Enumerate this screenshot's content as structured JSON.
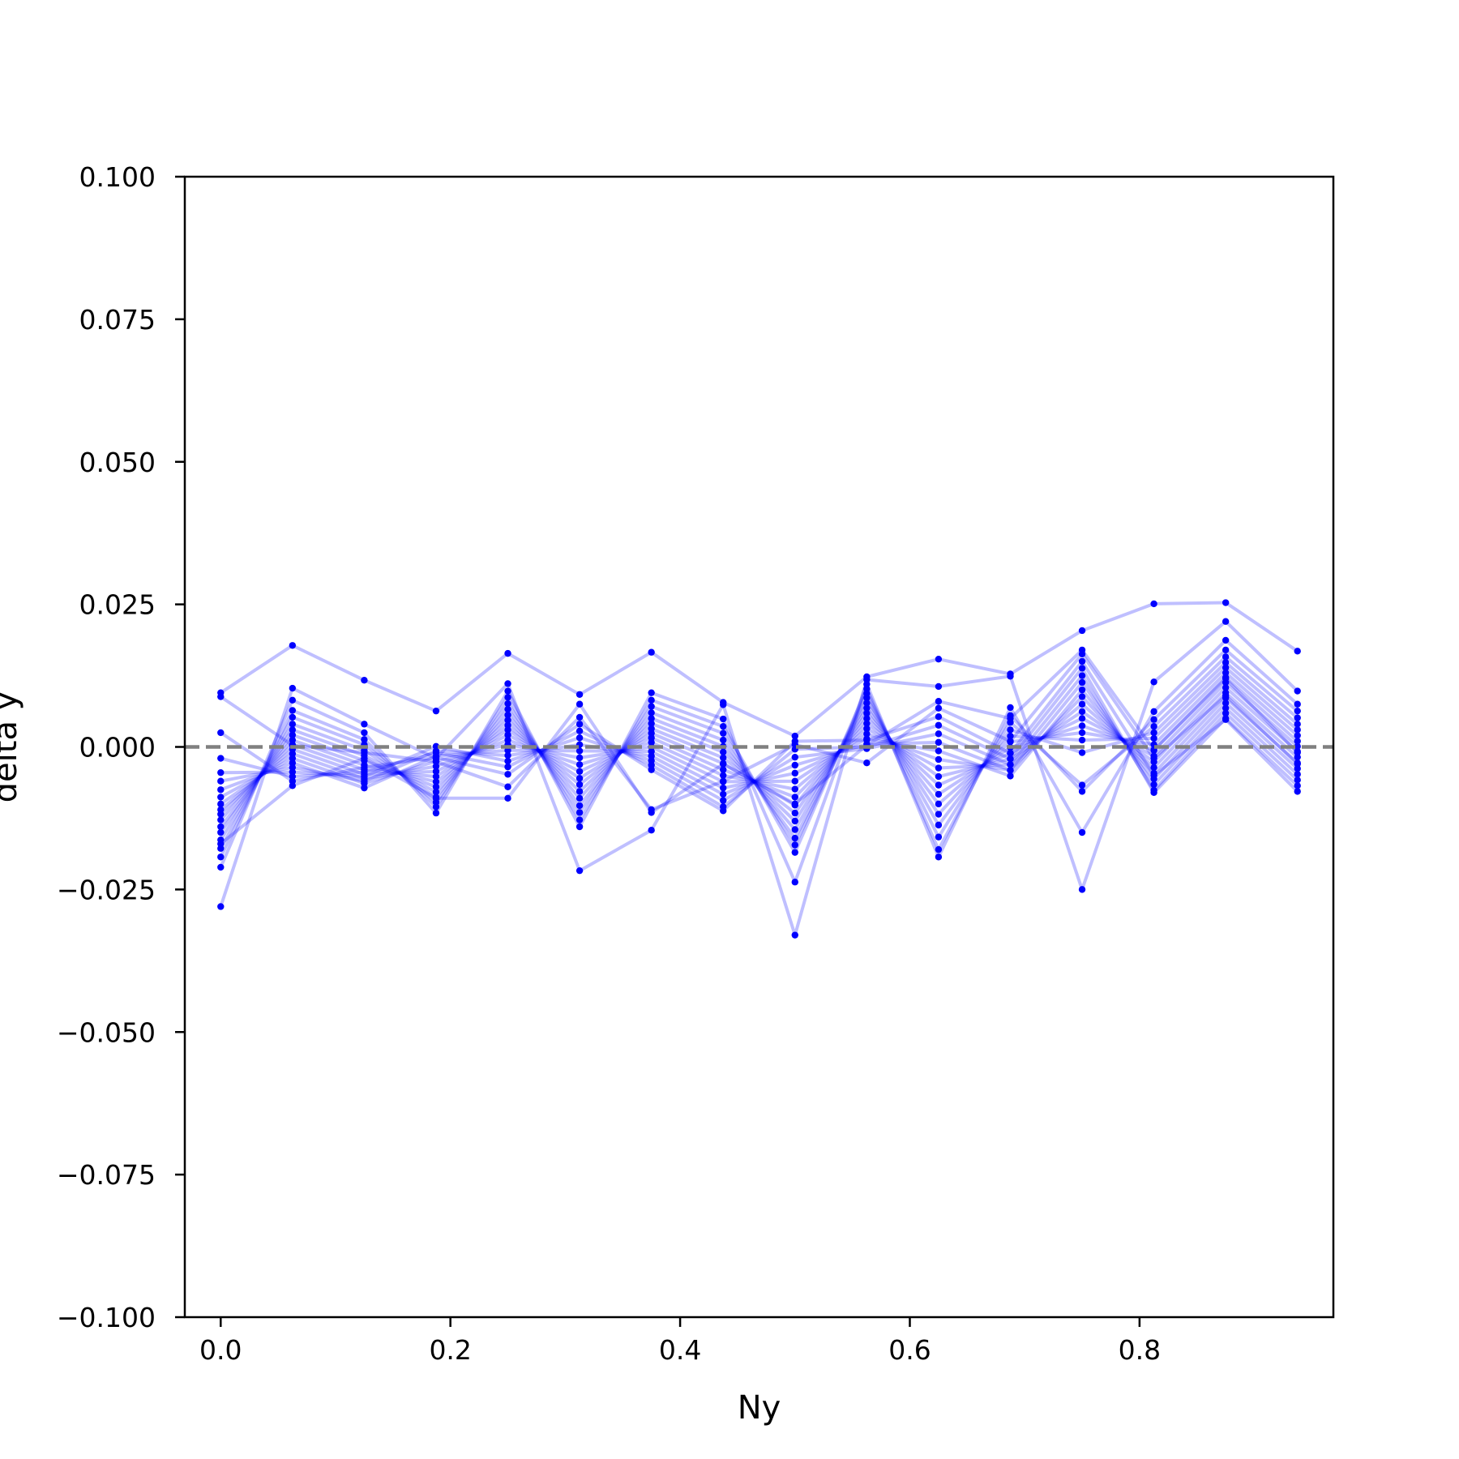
{
  "chart_data": {
    "type": "line",
    "xlabel": "Ny",
    "ylabel": "delta y",
    "xlim": [
      -0.03125,
      0.96875
    ],
    "ylim": [
      -0.1,
      0.1
    ],
    "xticks": [
      {
        "value": 0.0,
        "label": "0.0"
      },
      {
        "value": 0.2,
        "label": "0.2"
      },
      {
        "value": 0.4,
        "label": "0.4"
      },
      {
        "value": 0.6,
        "label": "0.6"
      },
      {
        "value": 0.8,
        "label": "0.8"
      }
    ],
    "yticks": [
      {
        "value": 0.1,
        "label": "0.100"
      },
      {
        "value": 0.075,
        "label": "0.075"
      },
      {
        "value": 0.05,
        "label": "0.050"
      },
      {
        "value": 0.025,
        "label": "0.025"
      },
      {
        "value": 0.0,
        "label": "0.000"
      },
      {
        "value": -0.025,
        "label": "−0.025"
      },
      {
        "value": -0.05,
        "label": "−0.050"
      },
      {
        "value": -0.075,
        "label": "−0.075"
      },
      {
        "value": -0.1,
        "label": "−0.100"
      }
    ],
    "grid": false,
    "reference_line": {
      "y": 0.0,
      "style": "dashed",
      "color": "#808080"
    },
    "series_color": "#0000ff",
    "series_opacity": 0.25,
    "x": [
      0.0,
      0.0625,
      0.125,
      0.1875,
      0.25,
      0.3125,
      0.375,
      0.4375,
      0.5,
      0.5625,
      0.625,
      0.6875,
      0.75,
      0.8125,
      0.875,
      0.9375
    ],
    "series": [
      {
        "values": [
          0.0095,
          0.0178,
          0.0117,
          0.0063,
          0.0164,
          0.0092,
          0.0166,
          0.0078,
          0.0019,
          0.0123,
          0.0154,
          0.0128,
          0.0204,
          0.0251,
          0.0253,
          0.0168
        ]
      },
      {
        "values": [
          -0.028,
          0.0103,
          0.004,
          -0.002,
          0.0111,
          -0.0217,
          -0.0146,
          0.0074,
          -0.033,
          0.0118,
          0.0106,
          0.0124,
          -0.025,
          0.0114,
          0.022,
          0.0098
        ]
      },
      {
        "values": [
          -0.0211,
          0.0082,
          0.0025,
          -0.0116,
          0.0098,
          -0.014,
          0.0095,
          0.0049,
          -0.0237,
          0.011,
          -0.0193,
          0.0069,
          -0.015,
          0.0062,
          0.0187,
          0.0075
        ]
      },
      {
        "values": [
          -0.0193,
          0.0064,
          0.0013,
          -0.0105,
          0.0087,
          -0.0128,
          0.0082,
          0.0036,
          -0.0185,
          0.0102,
          -0.018,
          0.0055,
          -0.0078,
          0.0048,
          0.017,
          0.0063
        ]
      },
      {
        "values": [
          -0.0178,
          0.0052,
          0.0004,
          -0.0097,
          0.0076,
          -0.0115,
          0.0071,
          0.0024,
          -0.0172,
          0.0094,
          -0.0158,
          0.0043,
          -0.0067,
          0.0036,
          0.0158,
          0.0051
        ]
      },
      {
        "values": [
          -0.0163,
          0.004,
          -0.0006,
          -0.0088,
          0.0066,
          -0.0103,
          0.006,
          0.0012,
          -0.016,
          0.0086,
          -0.0137,
          0.003,
          -0.001,
          0.0025,
          0.0148,
          0.004
        ]
      },
      {
        "values": [
          -0.015,
          0.003,
          -0.0015,
          -0.0079,
          0.0056,
          -0.009,
          0.005,
          0.0001,
          -0.0145,
          0.0077,
          -0.0118,
          0.0019,
          0.0012,
          0.0015,
          0.0139,
          0.003
        ]
      },
      {
        "values": [
          -0.014,
          0.0021,
          -0.0024,
          -0.007,
          0.0047,
          -0.0078,
          0.0041,
          -0.0009,
          -0.013,
          0.0068,
          -0.01,
          0.0009,
          0.0025,
          0.0004,
          0.013,
          0.002
        ]
      },
      {
        "values": [
          -0.0128,
          0.0012,
          -0.0032,
          -0.0061,
          0.0038,
          -0.0066,
          0.0032,
          -0.0019,
          -0.0116,
          0.0059,
          -0.0083,
          -0.0001,
          0.0037,
          -0.0006,
          0.0122,
          0.001
        ]
      },
      {
        "values": [
          -0.0118,
          0.0004,
          -0.004,
          -0.0052,
          0.003,
          -0.0055,
          0.0024,
          -0.0029,
          -0.0102,
          0.005,
          -0.0067,
          -0.0011,
          0.005,
          -0.0016,
          0.0113,
          0.0001
        ]
      },
      {
        "values": [
          -0.011,
          -0.0004,
          -0.0048,
          -0.0043,
          0.0021,
          -0.0043,
          0.0016,
          -0.004,
          -0.0088,
          0.0041,
          -0.0052,
          -0.0021,
          0.0062,
          -0.0026,
          0.0104,
          -0.0008
        ]
      },
      {
        "values": [
          -0.01,
          -0.0012,
          -0.0056,
          -0.0034,
          0.0012,
          -0.0031,
          0.0008,
          -0.005,
          -0.0074,
          0.0032,
          -0.0037,
          -0.0031,
          0.0075,
          -0.0036,
          0.0095,
          -0.0018
        ]
      },
      {
        "values": [
          -0.0088,
          -0.002,
          -0.0064,
          -0.0025,
          0.0004,
          -0.0019,
          0.0,
          -0.0061,
          -0.006,
          0.0023,
          -0.0022,
          -0.0041,
          0.0088,
          -0.0046,
          0.0086,
          -0.0028
        ]
      },
      {
        "values": [
          -0.0075,
          -0.0028,
          -0.0072,
          -0.0016,
          -0.0006,
          -0.0007,
          -0.0008,
          -0.0072,
          -0.0046,
          0.0014,
          -0.0007,
          -0.0051,
          0.01,
          -0.0056,
          0.0077,
          -0.0038
        ]
      },
      {
        "values": [
          -0.006,
          -0.0036,
          -0.006,
          -0.0007,
          -0.0015,
          0.0004,
          -0.0016,
          -0.0083,
          -0.0032,
          0.0005,
          0.0008,
          -0.0041,
          0.0113,
          -0.0066,
          0.0068,
          -0.0048
        ]
      },
      {
        "values": [
          -0.0045,
          -0.0044,
          -0.0052,
          0.0001,
          -0.0025,
          0.0016,
          -0.0024,
          -0.0094,
          -0.0018,
          -0.0003,
          0.0023,
          -0.0031,
          0.0125,
          -0.0076,
          0.0059,
          -0.0058
        ]
      },
      {
        "values": [
          -0.002,
          -0.0052,
          -0.0044,
          -0.001,
          -0.0035,
          0.0028,
          -0.0032,
          -0.0105,
          -0.0004,
          0.0,
          0.0038,
          -0.0021,
          0.0138,
          -0.008,
          0.005,
          -0.0068
        ]
      },
      {
        "values": [
          0.0025,
          -0.006,
          -0.0036,
          -0.0018,
          -0.0048,
          0.004,
          -0.004,
          -0.0112,
          0.001,
          0.0012,
          0.0053,
          -0.0011,
          0.015,
          -0.005,
          0.0048,
          -0.0078
        ]
      },
      {
        "values": [
          0.0088,
          0.0003,
          -0.001,
          -0.0026,
          -0.007,
          0.0052,
          -0.011,
          -0.006,
          0.0004,
          -0.0028,
          0.0068,
          0.001,
          0.0163,
          -0.002,
          0.009,
          -0.003
        ]
      },
      {
        "values": [
          -0.017,
          -0.0068,
          -0.002,
          -0.009,
          -0.009,
          0.0075,
          -0.0115,
          -0.003,
          -0.01,
          0.0003,
          0.008,
          0.005,
          0.017,
          -0.0005,
          0.012,
          -0.001
        ]
      }
    ]
  }
}
